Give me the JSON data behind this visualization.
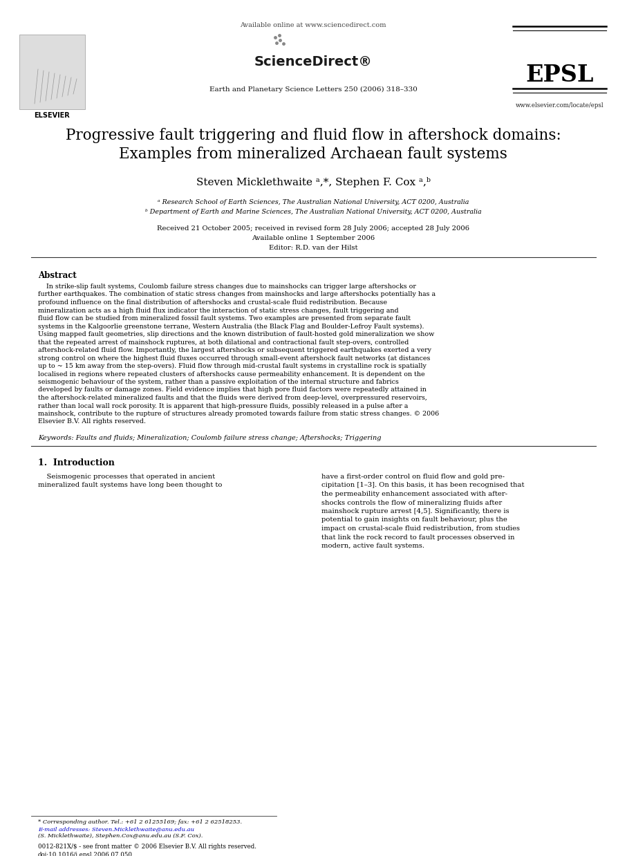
{
  "bg_color": "#ffffff",
  "title_line1": "Progressive fault triggering and fluid flow in aftershock domains:",
  "title_line2": "Examples from mineralized Archaean fault systems",
  "authors": "Steven Micklethwaite á,*, Stephen F. Cox á,b",
  "affil_a": "á Research School of Earth Sciences, The Australian National University, ACT 0200, Australia",
  "affil_b": "ᵇ Department of Earth and Marine Sciences, The Australian National University, ACT 0200, Australia",
  "received": "Received 21 October 2005; received in revised form 28 July 2006; accepted 28 July 2006",
  "available": "Available online 1 September 2006",
  "editor": "Editor: R.D. van der Hilst",
  "journal_line": "Earth and Planetary Science Letters 250 (2006) 318–330",
  "available_online": "Available online at www.sciencedirect.com",
  "epsl": "EPSL",
  "elsevier": "ELSEVIER",
  "website": "www.elsevier.com/locate/epsl",
  "abstract_title": "Abstract",
  "abstract_text": "In strike-slip fault systems, Coulomb failure stress changes due to mainshocks can trigger large aftershocks or further earthquakes. The combination of static stress changes from mainshocks and large aftershocks potentially has a profound influence on the final distribution of aftershocks and crustal-scale fluid redistribution. Because mineralization acts as a high fluid flux indicator the interaction of static stress changes, fault triggering and fluid flow can be studied from mineralized fossil fault systems. Two examples are presented from separate fault systems in the Kalgoorlie greenstone terrane, Western Australia (the Black Flag and Boulder-Lefroy Fault systems). Using mapped fault geometries, slip directions and the known distribution of fault-hosted gold mineralization we show that the repeated arrest of mainshock ruptures, at both dilational and contractional fault step-overs, controlled aftershock-related fluid flow. Importantly, the largest aftershocks or subsequent triggered earthquakes exerted a very strong control on where the highest fluid fluxes occurred through small-event aftershock fault networks (at distances up to ~ 15 km away from the step-overs). Fluid flow through mid-crustal fault systems in crystalline rock is spatially localised in regions where repeated clusters of aftershocks cause permeability enhancement. It is dependent on the seismogenic behaviour of the system, rather than a passive exploitation of the internal structure and fabrics developed by faults or damage zones. Field evidence implies that high pore fluid factors were repeatedly attained in the aftershock-related mineralized faults and that the fluids were derived from deep-level, overpressured reservoirs, rather than local wall rock porosity. It is apparent that high-pressure fluids, possibly released in a pulse after a mainshock, contribute to the rupture of structures already promoted towards failure from static stress changes.\n© 2006 Elsevier B.V. All rights reserved.",
  "keywords": "Keywords: Faults and fluids; Mineralization; Coulomb failure stress change; Aftershocks; Triggering",
  "intro_title": "1.  Introduction",
  "intro_left": "Seismogenic processes that operated in ancient mineralized fault systems have long been thought to",
  "intro_right": "have a first-order control on fluid flow and gold precipitation [1–3]. On this basis, it has been recognised that the permeability enhancement associated with aftershocks controls the flow of mineralizing fluids after mainshock rupture arrest [4,5]. Significantly, there is potential to gain insights on fault behaviour, plus the impact on crustal-scale fluid redistribution, from studies that link the rock record to fault processes observed in modern, active fault systems.",
  "footnote_star": "* Corresponding author. Tel.: +61 2 61255169; fax: +61 2 62518253.",
  "footnote_email": "E-mail addresses: Steven.Micklethwaite@anu.edu.au",
  "footnote_names": "(S. Micklethwaite), Stephen.Cox@anu.edu.au (S.F. Cox).",
  "issn": "0012-821X/$ - see front matter © 2006 Elsevier B.V. All rights reserved.",
  "doi": "doi:10.1016/j.epsl.2006.07.050"
}
